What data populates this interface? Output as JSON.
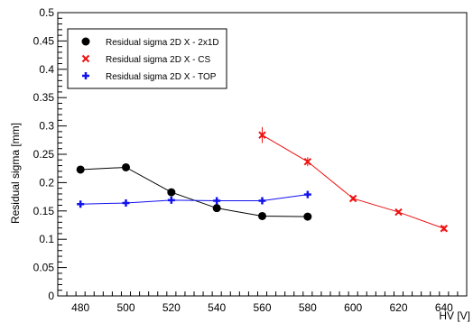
{
  "chart_data": {
    "type": "line",
    "xlabel": "HV [V]",
    "ylabel": "Residual sigma [mm]",
    "xlim": [
      470,
      650
    ],
    "ylim": [
      0,
      0.5
    ],
    "x_ticks": [
      480,
      500,
      520,
      540,
      560,
      580,
      600,
      620,
      640
    ],
    "y_ticks": [
      0,
      0.05,
      0.1,
      0.15,
      0.2,
      0.25,
      0.3,
      0.35,
      0.4,
      0.45,
      0.5
    ],
    "x_tick_labels": [
      "480",
      "500",
      "520",
      "540",
      "560",
      "580",
      "600",
      "620",
      "640"
    ],
    "y_tick_labels": [
      "0",
      "0.05",
      "0.1",
      "0.15",
      "0.2",
      "0.25",
      "0.3",
      "0.35",
      "0.4",
      "0.45",
      "0.5"
    ],
    "grid": false,
    "legend_position": "top-left",
    "series": [
      {
        "name": "Residual sigma 2D X - 2x1D",
        "color": "#000000",
        "marker": "circle",
        "x": [
          480,
          500,
          520,
          540,
          560,
          580
        ],
        "y": [
          0.223,
          0.227,
          0.183,
          0.155,
          0.141,
          0.14
        ],
        "yerr": [
          0.006,
          0.006,
          0.004,
          0.004,
          0.003,
          0.003
        ]
      },
      {
        "name": "Residual sigma 2D X - CS",
        "color": "#ee1111",
        "marker": "x",
        "x": [
          560,
          580,
          600,
          620,
          640
        ],
        "y": [
          0.284,
          0.237,
          0.172,
          0.148,
          0.119
        ],
        "yerr": [
          0.014,
          0.008,
          0.004,
          0.003,
          0.005
        ]
      },
      {
        "name": "Residual sigma 2D X - TOP",
        "color": "#1111ee",
        "marker": "plus",
        "x": [
          480,
          500,
          520,
          540,
          560,
          580
        ],
        "y": [
          0.162,
          0.164,
          0.169,
          0.168,
          0.168,
          0.179
        ],
        "yerr": [
          0.005,
          0.005,
          0.005,
          0.005,
          0.005,
          0.006
        ]
      }
    ]
  }
}
